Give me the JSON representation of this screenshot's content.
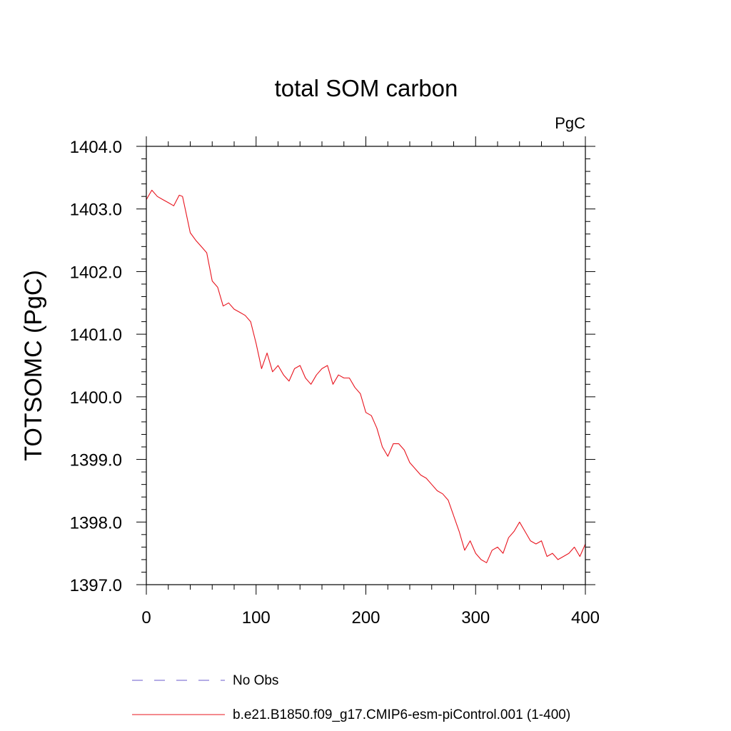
{
  "chart_data": {
    "type": "line",
    "title": "total SOM carbon",
    "units_label": "PgC",
    "ylabel": "TOTSOMC  (PgC)",
    "xlabel": "",
    "xlim": [
      0,
      400
    ],
    "ylim": [
      1397.0,
      1404.0
    ],
    "x_ticks": [
      0,
      100,
      200,
      300,
      400
    ],
    "x_tick_labels": [
      "0",
      "100",
      "200",
      "300",
      "400"
    ],
    "y_ticks": [
      1397.0,
      1398.0,
      1399.0,
      1400.0,
      1401.0,
      1402.0,
      1403.0,
      1404.0
    ],
    "y_tick_labels": [
      "1397.0",
      "1398.0",
      "1399.0",
      "1400.0",
      "1401.0",
      "1402.0",
      "1403.0",
      "1404.0"
    ],
    "grid": false,
    "legend_position": "bottom",
    "series": [
      {
        "name": "No Obs",
        "color": "#6a5acd",
        "dash": "dashed",
        "x": [],
        "y": []
      },
      {
        "name": "b.e21.B1850.f09_g17.CMIP6-esm-piControl.001 (1-400)",
        "color": "#e8141e",
        "dash": "solid",
        "x": [
          0,
          5,
          10,
          15,
          20,
          25,
          30,
          33,
          36,
          40,
          45,
          50,
          55,
          60,
          65,
          70,
          75,
          80,
          85,
          90,
          95,
          100,
          105,
          110,
          115,
          120,
          125,
          130,
          135,
          140,
          145,
          150,
          155,
          160,
          165,
          170,
          175,
          180,
          185,
          190,
          195,
          200,
          205,
          210,
          215,
          220,
          225,
          230,
          235,
          240,
          245,
          250,
          255,
          260,
          265,
          270,
          275,
          280,
          285,
          290,
          295,
          300,
          305,
          310,
          315,
          320,
          325,
          330,
          335,
          340,
          345,
          350,
          355,
          360,
          365,
          370,
          375,
          380,
          385,
          390,
          395,
          400
        ],
        "y": [
          1403.15,
          1403.3,
          1403.2,
          1403.15,
          1403.1,
          1403.05,
          1403.22,
          1403.2,
          1402.95,
          1402.62,
          1402.5,
          1402.4,
          1402.3,
          1401.85,
          1401.75,
          1401.45,
          1401.5,
          1401.4,
          1401.35,
          1401.3,
          1401.2,
          1400.85,
          1400.45,
          1400.7,
          1400.4,
          1400.5,
          1400.35,
          1400.25,
          1400.45,
          1400.5,
          1400.3,
          1400.2,
          1400.35,
          1400.45,
          1400.5,
          1400.2,
          1400.35,
          1400.3,
          1400.3,
          1400.15,
          1400.05,
          1399.75,
          1399.7,
          1399.5,
          1399.2,
          1399.05,
          1399.25,
          1399.25,
          1399.15,
          1398.95,
          1398.85,
          1398.75,
          1398.7,
          1398.6,
          1398.5,
          1398.45,
          1398.35,
          1398.1,
          1397.85,
          1397.55,
          1397.7,
          1397.5,
          1397.4,
          1397.35,
          1397.55,
          1397.6,
          1397.5,
          1397.75,
          1397.85,
          1398.0,
          1397.85,
          1397.7,
          1397.65,
          1397.7,
          1397.45,
          1397.5,
          1397.4,
          1397.45,
          1397.5,
          1397.6,
          1397.45,
          1397.65
        ]
      }
    ]
  }
}
